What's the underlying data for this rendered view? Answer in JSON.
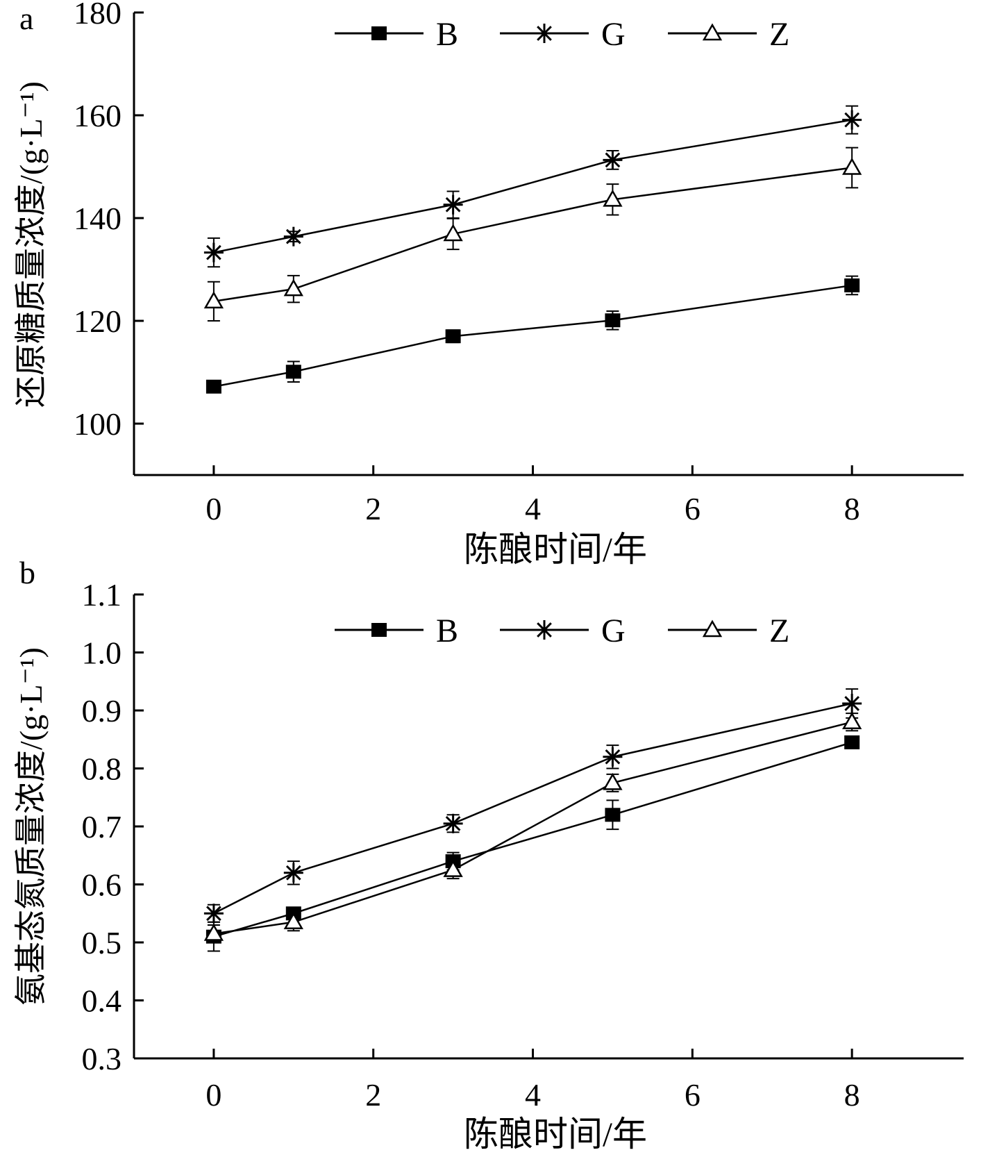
{
  "chart_data": [
    {
      "panel_label": "a",
      "type": "line",
      "ylabel": "还原糖质量浓度/(g·L⁻¹)",
      "xlabel": "陈酿时间/年",
      "x": [
        0,
        1,
        3,
        5,
        8
      ],
      "xlim": [
        -1.0,
        9.4
      ],
      "ylim": [
        90,
        180
      ],
      "xticks": [
        0,
        2,
        4,
        6,
        8
      ],
      "xtick_labels": [
        "0",
        "2",
        "4",
        "6",
        "8"
      ],
      "yticks": [
        100,
        120,
        140,
        160,
        180
      ],
      "ytick_labels": [
        "100",
        "120",
        "140",
        "160",
        "180"
      ],
      "grid": false,
      "legend": "top-center",
      "series": [
        {
          "name": "B",
          "marker": "filled-square",
          "values": [
            107.2,
            110.1,
            117.0,
            120.1,
            126.9
          ],
          "errors": [
            0.8,
            2.0,
            1.2,
            1.8,
            1.8
          ]
        },
        {
          "name": "G",
          "marker": "asterisk",
          "values": [
            133.3,
            136.4,
            142.6,
            151.3,
            159.1
          ],
          "errors": [
            2.8,
            1.0,
            2.6,
            1.8,
            2.7
          ]
        },
        {
          "name": "Z",
          "marker": "open-triangle",
          "values": [
            123.8,
            126.2,
            136.9,
            143.6,
            149.8
          ],
          "errors": [
            3.8,
            2.6,
            3.0,
            3.0,
            3.9
          ]
        }
      ]
    },
    {
      "panel_label": "b",
      "type": "line",
      "ylabel": "氨基态氮质量浓度/(g·L⁻¹)",
      "xlabel": "陈酿时间/年",
      "x": [
        0,
        1,
        3,
        5,
        8
      ],
      "xlim": [
        -1.0,
        9.4
      ],
      "ylim": [
        0.3,
        1.1
      ],
      "xticks": [
        0,
        2,
        4,
        6,
        8
      ],
      "xtick_labels": [
        "0",
        "2",
        "4",
        "6",
        "8"
      ],
      "yticks": [
        0.3,
        0.4,
        0.5,
        0.6,
        0.7,
        0.8,
        0.9,
        1.0,
        1.1
      ],
      "ytick_labels": [
        "0.3",
        "0.4",
        "0.5",
        "0.6",
        "0.7",
        "0.8",
        "0.9",
        "1.0",
        "1.1"
      ],
      "grid": false,
      "legend": "top-center",
      "series": [
        {
          "name": "B",
          "marker": "filled-square",
          "values": [
            0.51,
            0.55,
            0.64,
            0.72,
            0.845
          ],
          "errors": [
            0.025,
            0.01,
            0.015,
            0.025,
            0.01
          ]
        },
        {
          "name": "G",
          "marker": "asterisk",
          "values": [
            0.55,
            0.62,
            0.705,
            0.82,
            0.912
          ],
          "errors": [
            0.015,
            0.02,
            0.015,
            0.02,
            0.025
          ]
        },
        {
          "name": "Z",
          "marker": "open-triangle",
          "values": [
            0.515,
            0.535,
            0.625,
            0.775,
            0.88
          ],
          "errors": [
            0.015,
            0.015,
            0.015,
            0.015,
            0.015
          ]
        }
      ]
    }
  ]
}
